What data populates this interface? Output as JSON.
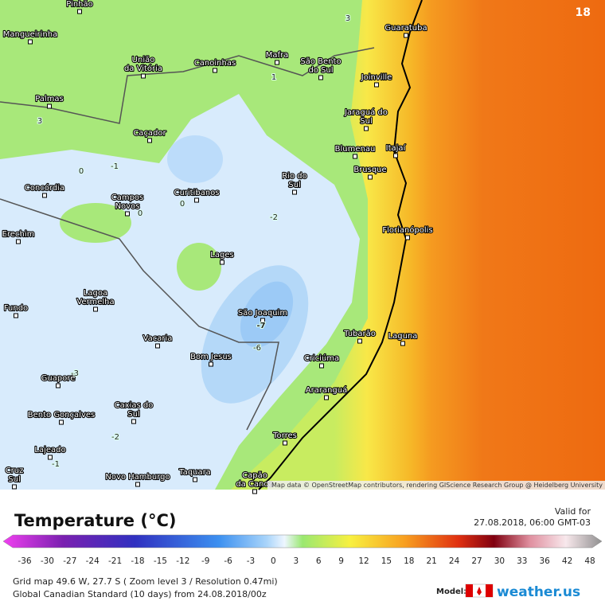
{
  "map": {
    "frame_label": "18",
    "cities": [
      "Pinhão",
      "Mangueirinha",
      [
        "União",
        "da Vitória"
      ],
      "Canoinhas",
      "Mafra",
      [
        "São Bento",
        "do Sul"
      ],
      "Guaratuba",
      "Joinville",
      "Palmas",
      [
        "Jaraguá do",
        "Sul"
      ],
      "Caçador",
      "Blumenau",
      "Itajaí",
      "Brusque",
      [
        "Rio do",
        "Sul"
      ],
      "Concórdia",
      "Curitibanos",
      [
        "Campos",
        "Novos"
      ],
      "Florianópolis",
      "Erechim",
      "Lages",
      [
        "Lagoa",
        "Vermelha"
      ],
      "São Joaquim",
      "Fundo",
      "Vacaria",
      "Tubarão",
      "Laguna",
      "Bom Jesus",
      "Criciúma",
      "Guaporé",
      "Araranguá",
      [
        "Caxias do",
        "Sul"
      ],
      "Bento Gonçalves",
      "Torres",
      "Lajeado",
      [
        "Cruz",
        "Sul"
      ],
      "Novo Hamburgo",
      "Taquara",
      [
        "Capão",
        "da Canoa"
      ]
    ],
    "contour_labels": [
      3,
      1,
      3,
      0,
      -1,
      0,
      0,
      -2,
      -7,
      -6,
      -3,
      -2,
      -1
    ],
    "attribution": "Map data © OpenStreetMap contributors, rendering GIScience Research Group @ Heidelberg University"
  },
  "legend": {
    "title": "Temperature (°C)",
    "valid_label": "Valid for",
    "valid_time": "27.08.2018, 06:00 GMT-03",
    "scale_ticks": [
      -36,
      -30,
      -27,
      -24,
      -21,
      -18,
      -15,
      -12,
      -9,
      -6,
      -3,
      0,
      3,
      6,
      9,
      12,
      15,
      18,
      21,
      24,
      27,
      30,
      33,
      36,
      42,
      48
    ]
  },
  "footer": {
    "grid_info": "Grid map 49.6 W, 27.7 S ( Zoom level 3 / Resolution 0.47mi)",
    "model_info": "Global Canadian Standard (10 days) from 24.08.2018/00z",
    "model_label": "Model:",
    "brand": "weather.us"
  }
}
